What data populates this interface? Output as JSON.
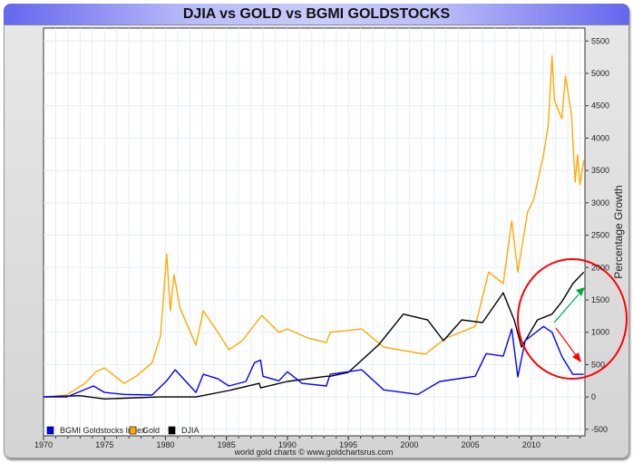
{
  "chart_data": {
    "type": "line",
    "title": "DJIA vs GOLD vs BGMI GOLDSTOCKS",
    "ylabel": "Percentage Growth",
    "xlabel": "",
    "credit": "world gold charts © www.goldchartsrus.com",
    "xlim": [
      1970,
      2014.4
    ],
    "ylim": [
      -600,
      5700
    ],
    "x_ticks": [
      "1970",
      "1975",
      "1980",
      "1985",
      "1990",
      "1995",
      "2000",
      "2005",
      "2010"
    ],
    "y_ticks": [
      "5500",
      "5000",
      "4500",
      "4000",
      "3500",
      "3000",
      "2500",
      "2000",
      "1500",
      "1000",
      "500",
      "0",
      "-500"
    ],
    "grid": true,
    "legend_position": "bottom-left",
    "series": [
      {
        "name": "BGMI Goldstocks Index",
        "color": "#0000ff",
        "x": [
          1970,
          1971.9,
          1974.1,
          1975,
          1976.6,
          1978.9,
          1980.1,
          1980.8,
          1982.5,
          1983.1,
          1984.3,
          1985.2,
          1986.6,
          1987.3,
          1987.8,
          1988,
          1989.3,
          1990,
          1991.2,
          1993.2,
          1993.5,
          1996.1,
          1997.9,
          2000.7,
          2002.5,
          2005.4,
          2006.3,
          2007.7,
          2008.4,
          2008.9,
          2009.5,
          2011,
          2011.7,
          2012.5,
          2013.4,
          2014.3
        ],
        "y": [
          0,
          0,
          170,
          70,
          40,
          30,
          250,
          420,
          70,
          350,
          280,
          170,
          240,
          530,
          570,
          320,
          250,
          390,
          210,
          170,
          350,
          420,
          110,
          40,
          240,
          320,
          670,
          630,
          1050,
          310,
          870,
          1090,
          1000,
          630,
          350,
          350
        ]
      },
      {
        "name": "Gold",
        "color": "#ffaa00",
        "x": [
          1970,
          1971.9,
          1973.4,
          1974.3,
          1975,
          1976.6,
          1977.6,
          1978.9,
          1979.6,
          1980.1,
          1980.4,
          1980.7,
          1981.2,
          1982.5,
          1983.1,
          1984.3,
          1985.2,
          1986.3,
          1987.9,
          1989.3,
          1990,
          1991.7,
          1993.2,
          1993.5,
          1996.1,
          1997.9,
          2000,
          2001.3,
          2003,
          2005.4,
          2006.5,
          2007.7,
          2008.4,
          2008.9,
          2009.7,
          2010.2,
          2011,
          2011.4,
          2011.7,
          2011.9,
          2012.5,
          2012.8,
          2013.3,
          2013.6,
          2013.8,
          2014.0,
          2014.3
        ],
        "y": [
          0,
          30,
          210,
          390,
          450,
          210,
          320,
          530,
          950,
          2210,
          1330,
          1890,
          1370,
          800,
          1330,
          1000,
          730,
          870,
          1260,
          1000,
          1050,
          910,
          840,
          1000,
          1050,
          770,
          700,
          660,
          910,
          1090,
          1930,
          1750,
          2720,
          1930,
          2860,
          3050,
          3740,
          4220,
          5270,
          4580,
          4300,
          4960,
          4360,
          3320,
          3740,
          3280,
          3660
        ]
      },
      {
        "name": "DJIA",
        "color": "#000000",
        "x": [
          1970,
          1973,
          1975,
          1979.5,
          1982.5,
          1985.2,
          1987.7,
          1987.8,
          1990,
          1993.2,
          1993.5,
          1995,
          1997.5,
          1999.5,
          2001.5,
          2002.8,
          2004.3,
          2006,
          2007.7,
          2008.6,
          2009.2,
          2010.5,
          2011.7,
          2012.5,
          2013.4,
          2014.3
        ],
        "y": [
          0,
          20,
          -30,
          0,
          0,
          100,
          210,
          140,
          240,
          320,
          320,
          380,
          810,
          1280,
          1190,
          870,
          1190,
          1150,
          1610,
          1190,
          770,
          1190,
          1280,
          1470,
          1750,
          1930
        ]
      }
    ],
    "annotations": {
      "circle_color": "#ff0000",
      "up_arrow_color": "#00aa44",
      "down_arrow_color": "#ff0000"
    }
  }
}
